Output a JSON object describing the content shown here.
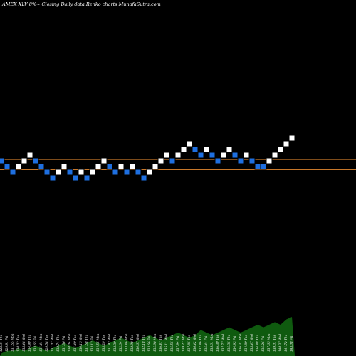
{
  "chart_data": {
    "type": "renko",
    "title": "AMEX  XLV 8%~  Closing Daily data  Renko  charts MunafaSutra.com",
    "colors": {
      "background": "#000000",
      "up_brick": "#ffffff",
      "down_brick": "#1e6fe0",
      "brick_border": "#000000",
      "reference_line": "#c8782a",
      "volume": "#0f5a0f"
    },
    "bricks": [
      {
        "dir": "down",
        "level": 10
      },
      {
        "dir": "down",
        "level": 9
      },
      {
        "dir": "down",
        "level": 8
      },
      {
        "dir": "up",
        "level": 9
      },
      {
        "dir": "up",
        "level": 10
      },
      {
        "dir": "up",
        "level": 11
      },
      {
        "dir": "down",
        "level": 10
      },
      {
        "dir": "down",
        "level": 9
      },
      {
        "dir": "down",
        "level": 8
      },
      {
        "dir": "down",
        "level": 7
      },
      {
        "dir": "up",
        "level": 8
      },
      {
        "dir": "up",
        "level": 9
      },
      {
        "dir": "down",
        "level": 8
      },
      {
        "dir": "down",
        "level": 7
      },
      {
        "dir": "up",
        "level": 8
      },
      {
        "dir": "down",
        "level": 7
      },
      {
        "dir": "up",
        "level": 8
      },
      {
        "dir": "up",
        "level": 9
      },
      {
        "dir": "up",
        "level": 10
      },
      {
        "dir": "down",
        "level": 9
      },
      {
        "dir": "down",
        "level": 8
      },
      {
        "dir": "up",
        "level": 9
      },
      {
        "dir": "down",
        "level": 8
      },
      {
        "dir": "up",
        "level": 9
      },
      {
        "dir": "down",
        "level": 8
      },
      {
        "dir": "down",
        "level": 7
      },
      {
        "dir": "up",
        "level": 8
      },
      {
        "dir": "up",
        "level": 9
      },
      {
        "dir": "up",
        "level": 10
      },
      {
        "dir": "up",
        "level": 11
      },
      {
        "dir": "down",
        "level": 10
      },
      {
        "dir": "up",
        "level": 11
      },
      {
        "dir": "up",
        "level": 12
      },
      {
        "dir": "up",
        "level": 13
      },
      {
        "dir": "down",
        "level": 12
      },
      {
        "dir": "down",
        "level": 11
      },
      {
        "dir": "up",
        "level": 12
      },
      {
        "dir": "down",
        "level": 11
      },
      {
        "dir": "down",
        "level": 10
      },
      {
        "dir": "up",
        "level": 11
      },
      {
        "dir": "up",
        "level": 12
      },
      {
        "dir": "down",
        "level": 11
      },
      {
        "dir": "down",
        "level": 10
      },
      {
        "dir": "up",
        "level": 11
      },
      {
        "dir": "down",
        "level": 10
      },
      {
        "dir": "down",
        "level": 9
      },
      {
        "dir": "down",
        "level": 9
      },
      {
        "dir": "up",
        "level": 10
      },
      {
        "dir": "up",
        "level": 11
      },
      {
        "dir": "up",
        "level": 12
      },
      {
        "dir": "up",
        "level": 13
      },
      {
        "dir": "up",
        "level": 14
      }
    ],
    "reference_lines": [
      9.8,
      8.0
    ],
    "volume": [
      1,
      2,
      2,
      3,
      2,
      3,
      4,
      3,
      2,
      3,
      4,
      5,
      4,
      3,
      4,
      5,
      6,
      5,
      4,
      5,
      6,
      7,
      6,
      5,
      6,
      7,
      8,
      7,
      6,
      7,
      8,
      9,
      8,
      7,
      8,
      10,
      9,
      8,
      9,
      10,
      11,
      10,
      9,
      10,
      11,
      12,
      11,
      12,
      13,
      12,
      14,
      15
    ],
    "x_labels": [
      "128.34 Thu",
      "129.91 Fri",
      "131.55 Mon",
      "130.02 Tue",
      "133.48 Wed",
      "134.99 Thu",
      "133.65 Fri",
      "131.41 Mon",
      "129.58 Tue",
      "131.07 Wed",
      "132.74 Thu",
      "131.36 Fri",
      "130.04 Mon",
      "131.49 Tue",
      "130.15 Wed",
      "131.58 Thu",
      "133.13 Fri",
      "134.55 Mon",
      "133.29 Tue",
      "131.93 Wed",
      "133.39 Thu",
      "132.04 Fri",
      "133.46 Mon",
      "132.08 Tue",
      "130.67 Wed",
      "132.18 Thu",
      "133.66 Fri",
      "135.08 Mon",
      "136.47 Tue",
      "135.11 Wed",
      "136.55 Thu",
      "137.94 Fri",
      "139.27 Mon",
      "137.85 Tue",
      "136.42 Wed",
      "137.86 Thu",
      "136.44 Fri",
      "135.01 Mon",
      "136.39 Tue",
      "137.77 Wed",
      "136.35 Thu",
      "134.93 Fri",
      "136.31 Mon",
      "134.89 Tue",
      "133.47 Wed",
      "134.88 Thu",
      "136.26 Fri",
      "137.65 Mon",
      "139.01 Tue",
      "140.37 Wed",
      "141.72 Thu",
      "143.08 Fri"
    ]
  }
}
